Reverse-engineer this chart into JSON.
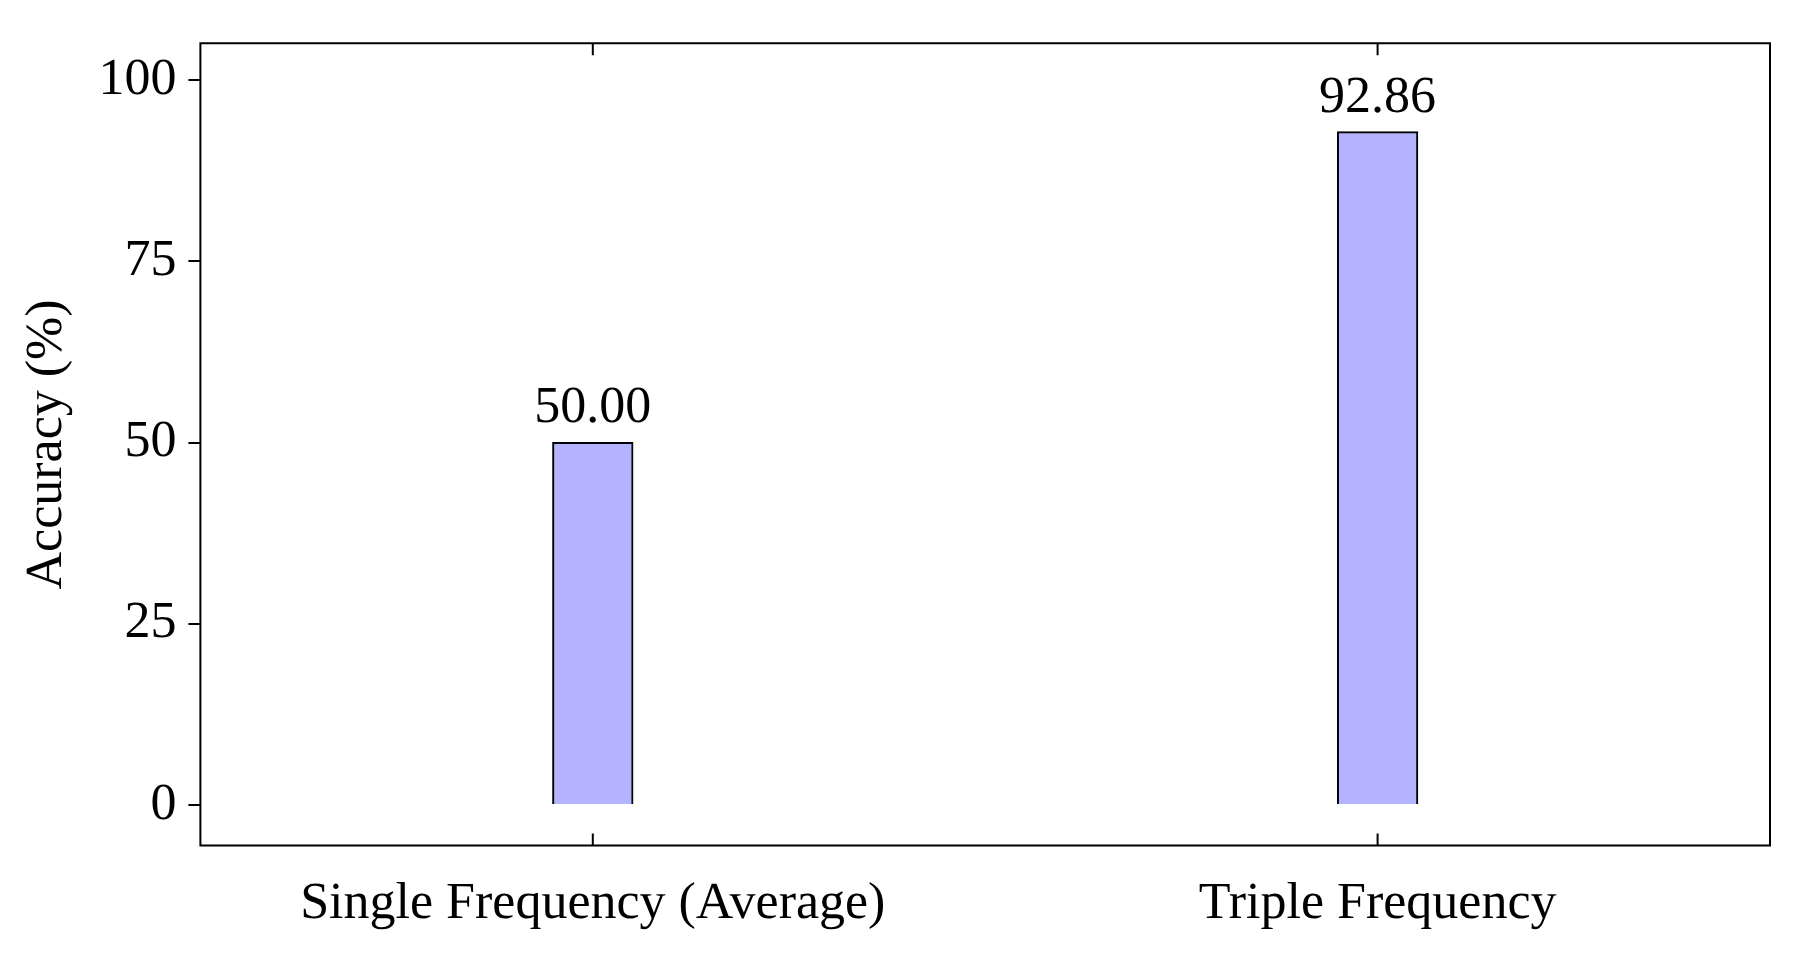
{
  "chart_data": {
    "type": "bar",
    "ylabel": "Accuracy (%)",
    "categories": [
      "Single Frequency (Average)",
      "Triple Frequency"
    ],
    "values": [
      50.0,
      92.86
    ],
    "color": "#b3b3ff",
    "value_labels": [
      "50.00",
      "92.86"
    ],
    "ylim": [
      -5.6,
      105.1
    ],
    "yticks": [
      0,
      25,
      50,
      75,
      100
    ],
    "grid": false,
    "legend": false
  }
}
